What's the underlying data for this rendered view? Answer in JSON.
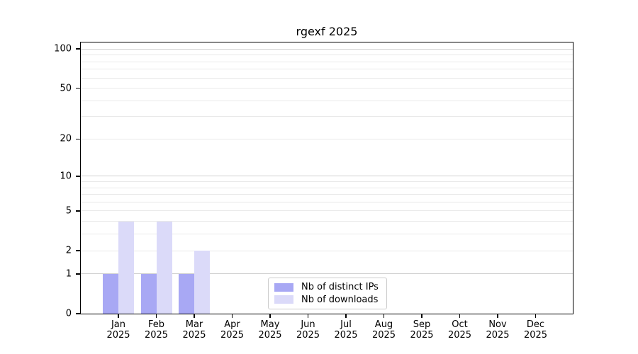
{
  "chart_data": {
    "type": "bar",
    "title": "rgexf 2025",
    "categories": [
      "Jan",
      "Feb",
      "Mar",
      "Apr",
      "May",
      "Jun",
      "Jul",
      "Aug",
      "Sep",
      "Oct",
      "Nov",
      "Dec"
    ],
    "year_label": "2025",
    "series": [
      {
        "name": "Nb of distinct IPs",
        "color": "#a8a8f4",
        "values": [
          1,
          1,
          1,
          0,
          0,
          0,
          0,
          0,
          0,
          0,
          0,
          0
        ]
      },
      {
        "name": "Nb of downloads",
        "color": "#dbdaf9",
        "values": [
          4,
          4,
          2,
          0,
          0,
          0,
          0,
          0,
          0,
          0,
          0,
          0
        ]
      }
    ],
    "y_axis": {
      "scale": "log1p",
      "ticks": [
        0,
        1,
        2,
        5,
        10,
        20,
        50,
        100
      ],
      "ylim": [
        0,
        115
      ],
      "grid": "horizontal major+minor"
    },
    "legend": {
      "position": "lower center"
    },
    "colors": {
      "grid_major": "#d0d0d0",
      "grid_minor": "#e9e9e9",
      "axis": "#000000",
      "legend_border": "#cccccc",
      "background": "#ffffff"
    }
  }
}
